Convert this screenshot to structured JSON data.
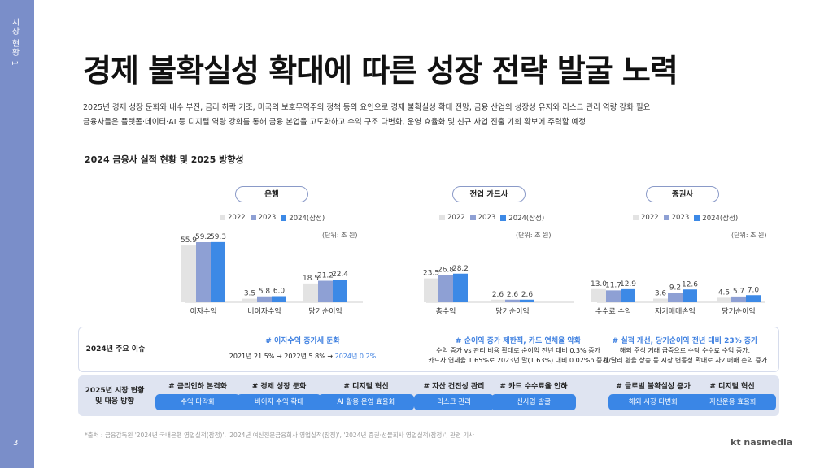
{
  "sidebar": {
    "title": "시장 현황 1",
    "page": "3"
  },
  "title": "경제 불확실성 확대에 따른 성장 전략 발굴 노력",
  "description": [
    "2025년 경제 성장 둔화와 내수 부진, 금리 하락 기조, 미국의 보호무역주의 정책 등의 요인으로 경제 불확실성 확대 전망, 금융 산업의 성장성 유지와 리스크 관리 역량 강화 필요",
    "금융사들은 플랫폼·데이터·AI 등 디지털 역량 강화를 통해 금융 본업을 고도화하고 수익 구조 다변화, 운영 효율화 및 신규 사업 진출 기회 확보에 주력할 예정"
  ],
  "section_title": "2024 금융사 실적 현황 및 2025 방향성",
  "legend": [
    "2022",
    "2023",
    "2024(잠정)"
  ],
  "unit": "(단위: 조 원)",
  "colors": {
    "y2022": "#e3e3e3",
    "y2023": "#8ea0d4",
    "y2024": "#3c89e6",
    "sidebar": "#7a8ec9",
    "accent": "#3d7fe0"
  },
  "chart_data": [
    {
      "type": "bar",
      "title": "은행",
      "categories": [
        "이자수익",
        "비이자수익",
        "당기순이익"
      ],
      "series": [
        {
          "name": "2022",
          "values": [
            55.9,
            3.5,
            18.5
          ]
        },
        {
          "name": "2023",
          "values": [
            59.2,
            5.8,
            21.2
          ]
        },
        {
          "name": "2024(잠정)",
          "values": [
            59.3,
            6.0,
            22.4
          ]
        }
      ]
    },
    {
      "type": "bar",
      "title": "전업 카드사",
      "categories": [
        "총수익",
        "당기순이익"
      ],
      "series": [
        {
          "name": "2022",
          "values": [
            23.5,
            2.6
          ]
        },
        {
          "name": "2023",
          "values": [
            26.8,
            2.6
          ]
        },
        {
          "name": "2024(잠정)",
          "values": [
            28.2,
            2.6
          ]
        }
      ]
    },
    {
      "type": "bar",
      "title": "증권사",
      "categories": [
        "수수료 수익",
        "자기매매손익",
        "당기순이익"
      ],
      "series": [
        {
          "name": "2022",
          "values": [
            13.0,
            3.6,
            4.5
          ]
        },
        {
          "name": "2023",
          "values": [
            11.7,
            9.2,
            5.7
          ]
        },
        {
          "name": "2024(잠정)",
          "values": [
            12.9,
            12.6,
            7.0
          ]
        }
      ]
    }
  ],
  "issues": {
    "label": "2024년 주요 이슈",
    "bank": {
      "head": "# 이자수익 증가세 둔화",
      "body_prefix": "2021년 21.5% → 2022년 5.8% → ",
      "body_highlight": "2024년 0.2%"
    },
    "card": {
      "head": "# 순이익 증가 제한적, 카드 연체율 악화",
      "line1": "수익 증가 vs 관리 비용 확대로 순이익 전년 대비 0.3% 증가",
      "line2": "카드사 연체율 1.65%로 2023년 말(1.63%) 대비 0.02%p 증가"
    },
    "sec": {
      "head": "# 실적 개선, 당기순이익 전년 대비 23% 증가",
      "line1": "해외 주식 거래 급증으로 수탁 수수료 수익 증가,",
      "line2": "원/달러 환율 상승 등 시장 변동성 확대로 자기매매 손익 증가"
    }
  },
  "response": {
    "label_line1": "2025년 시장 현황",
    "label_line2": "및 대응 방향",
    "groups": [
      {
        "head": "# 금리인하 본격화",
        "button": "수익 다각화"
      },
      {
        "head": "# 경제 성장 둔화",
        "button": "비이자 수익 확대"
      },
      {
        "head": "# 디지털 혁신",
        "button": "AI 활용 운영 효율화"
      },
      {
        "head": "# 자산 건전성 관리",
        "button": "리스크 관리"
      },
      {
        "head": "# 카드 수수료율 인하",
        "button": "신사업 발굴"
      },
      {
        "head": "# 글로벌 불확실성 증가",
        "button": "해외 시장 다변화"
      },
      {
        "head": "# 디지털 혁신",
        "button": "자산운용 효율화"
      }
    ]
  },
  "footnote": "*출처 : 금융감독원 '2024년 국내은행 영업실적(잠정)', '2024년 여신전문금융회사 영업실적(잠정)', '2024년 증권·선물회사 영업실적(잠정)', 관련 기사",
  "brand": "kt nasmedia"
}
